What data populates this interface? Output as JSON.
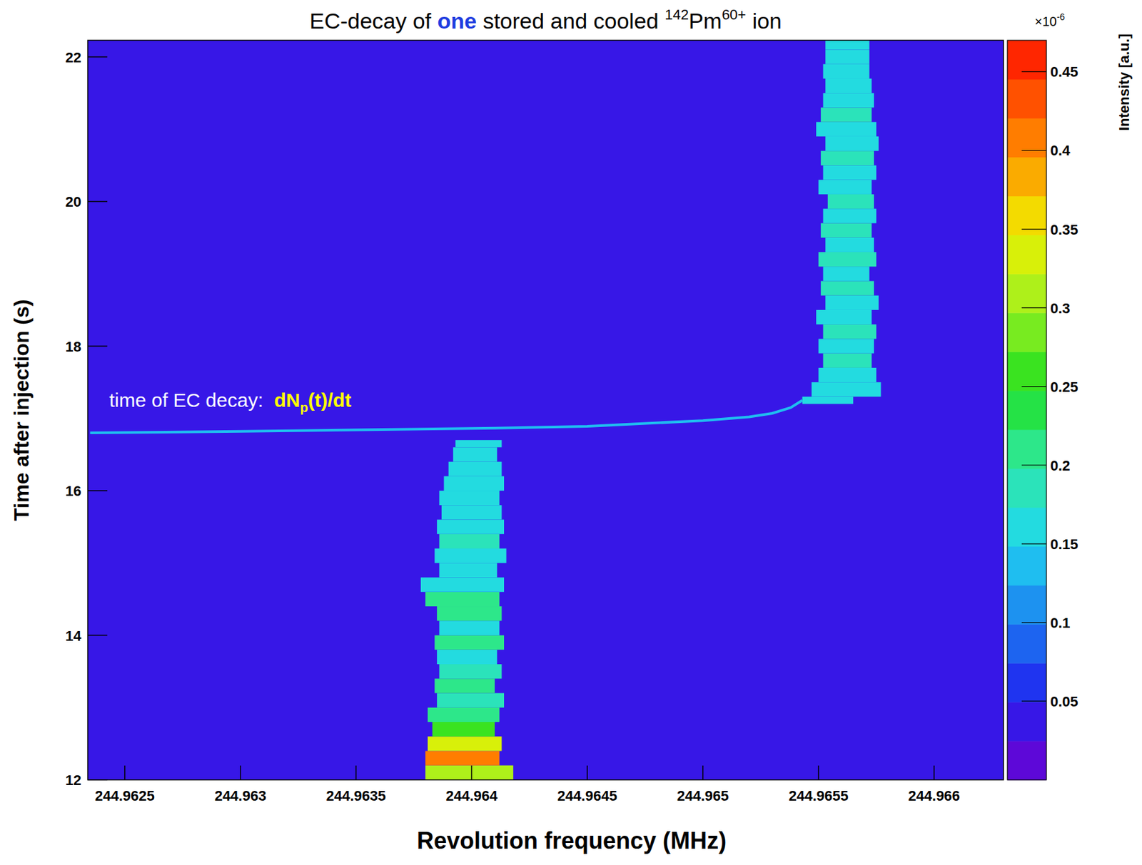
{
  "chart_data": {
    "type": "heatmap",
    "title": [
      "EC-decay of ",
      "one",
      " stored and cooled ",
      "142",
      "Pm",
      "60+",
      " ion"
    ],
    "x_label": "Revolution frequency (MHz)",
    "y_label": "Time after injection (s)",
    "annotation": {
      "label": "time of EC decay:",
      "formula": [
        "dN",
        "p",
        "(t)/dt"
      ]
    },
    "xlim": [
      244.96234,
      244.9663
    ],
    "xticks": [
      244.9625,
      244.963,
      244.9635,
      244.964,
      244.9645,
      244.965,
      244.9655,
      244.966
    ],
    "ylim": [
      12,
      22.23
    ],
    "yticks": [
      12,
      14,
      16,
      18,
      20,
      22
    ],
    "background": 0.03,
    "cells": [
      {
        "t0": 12.0,
        "t1": 12.2,
        "f0": 244.9638,
        "f1": 244.96418,
        "value": 0.3
      },
      {
        "t0": 12.2,
        "t1": 12.4,
        "f0": 244.9638,
        "f1": 244.96412,
        "value": 0.4
      },
      {
        "t0": 12.4,
        "t1": 12.6,
        "f0": 244.96381,
        "f1": 244.96413,
        "value": 0.33
      },
      {
        "t0": 12.6,
        "t1": 12.8,
        "f0": 244.96383,
        "f1": 244.9641,
        "value": 0.27
      },
      {
        "t0": 12.8,
        "t1": 13.0,
        "f0": 244.96381,
        "f1": 244.96412,
        "value": 0.2
      },
      {
        "t0": 13.0,
        "t1": 13.2,
        "f0": 244.96385,
        "f1": 244.96414,
        "value": 0.18
      },
      {
        "t0": 13.2,
        "t1": 13.4,
        "f0": 244.96384,
        "f1": 244.9641,
        "value": 0.2
      },
      {
        "t0": 13.4,
        "t1": 13.6,
        "f0": 244.96386,
        "f1": 244.96413,
        "value": 0.18
      },
      {
        "t0": 13.6,
        "t1": 13.8,
        "f0": 244.96385,
        "f1": 244.96411,
        "value": 0.16
      },
      {
        "t0": 13.8,
        "t1": 14.0,
        "f0": 244.96384,
        "f1": 244.96414,
        "value": 0.2
      },
      {
        "t0": 14.0,
        "t1": 14.2,
        "f0": 244.96386,
        "f1": 244.96412,
        "value": 0.17
      },
      {
        "t0": 14.2,
        "t1": 14.4,
        "f0": 244.96385,
        "f1": 244.96413,
        "value": 0.22
      },
      {
        "t0": 14.4,
        "t1": 14.6,
        "f0": 244.9638,
        "f1": 244.96412,
        "value": 0.2
      },
      {
        "t0": 14.6,
        "t1": 14.8,
        "f0": 244.96378,
        "f1": 244.96414,
        "value": 0.17
      },
      {
        "t0": 14.8,
        "t1": 15.0,
        "f0": 244.96386,
        "f1": 244.96411,
        "value": 0.15
      },
      {
        "t0": 15.0,
        "t1": 15.2,
        "f0": 244.96384,
        "f1": 244.96415,
        "value": 0.16
      },
      {
        "t0": 15.2,
        "t1": 15.4,
        "f0": 244.96386,
        "f1": 244.96412,
        "value": 0.18
      },
      {
        "t0": 15.4,
        "t1": 15.6,
        "f0": 244.96385,
        "f1": 244.96414,
        "value": 0.17
      },
      {
        "t0": 15.6,
        "t1": 15.8,
        "f0": 244.96387,
        "f1": 244.96413,
        "value": 0.16
      },
      {
        "t0": 15.8,
        "t1": 16.0,
        "f0": 244.96386,
        "f1": 244.96412,
        "value": 0.15
      },
      {
        "t0": 16.0,
        "t1": 16.2,
        "f0": 244.96388,
        "f1": 244.96414,
        "value": 0.16
      },
      {
        "t0": 16.2,
        "t1": 16.4,
        "f0": 244.9639,
        "f1": 244.96413,
        "value": 0.15
      },
      {
        "t0": 16.4,
        "t1": 16.6,
        "f0": 244.96392,
        "f1": 244.96411,
        "value": 0.15
      },
      {
        "t0": 16.6,
        "t1": 16.7,
        "f0": 244.96393,
        "f1": 244.96413,
        "value": 0.17
      },
      {
        "t0": 17.2,
        "t1": 17.3,
        "f0": 244.96543,
        "f1": 244.96565,
        "value": 0.15
      },
      {
        "t0": 17.3,
        "t1": 17.5,
        "f0": 244.96547,
        "f1": 244.96577,
        "value": 0.17
      },
      {
        "t0": 17.5,
        "t1": 17.7,
        "f0": 244.9655,
        "f1": 244.96575,
        "value": 0.15
      },
      {
        "t0": 17.7,
        "t1": 17.9,
        "f0": 244.96552,
        "f1": 244.96573,
        "value": 0.18
      },
      {
        "t0": 17.9,
        "t1": 18.1,
        "f0": 244.9655,
        "f1": 244.96574,
        "value": 0.16
      },
      {
        "t0": 18.1,
        "t1": 18.3,
        "f0": 244.96552,
        "f1": 244.96575,
        "value": 0.18
      },
      {
        "t0": 18.3,
        "t1": 18.5,
        "f0": 244.96549,
        "f1": 244.96573,
        "value": 0.15
      },
      {
        "t0": 18.5,
        "t1": 18.7,
        "f0": 244.96553,
        "f1": 244.96576,
        "value": 0.17
      },
      {
        "t0": 18.7,
        "t1": 18.9,
        "f0": 244.96551,
        "f1": 244.96574,
        "value": 0.19
      },
      {
        "t0": 18.9,
        "t1": 19.1,
        "f0": 244.96552,
        "f1": 244.96572,
        "value": 0.16
      },
      {
        "t0": 19.1,
        "t1": 19.3,
        "f0": 244.9655,
        "f1": 244.96575,
        "value": 0.18
      },
      {
        "t0": 19.3,
        "t1": 19.5,
        "f0": 244.96553,
        "f1": 244.96574,
        "value": 0.17
      },
      {
        "t0": 19.5,
        "t1": 19.7,
        "f0": 244.96551,
        "f1": 244.96573,
        "value": 0.19
      },
      {
        "t0": 19.7,
        "t1": 19.9,
        "f0": 244.96552,
        "f1": 244.96575,
        "value": 0.16
      },
      {
        "t0": 19.9,
        "t1": 20.1,
        "f0": 244.96554,
        "f1": 244.96574,
        "value": 0.18
      },
      {
        "t0": 20.1,
        "t1": 20.3,
        "f0": 244.9655,
        "f1": 244.96573,
        "value": 0.17
      },
      {
        "t0": 20.3,
        "t1": 20.5,
        "f0": 244.96552,
        "f1": 244.96575,
        "value": 0.15
      },
      {
        "t0": 20.5,
        "t1": 20.7,
        "f0": 244.96551,
        "f1": 244.96574,
        "value": 0.18
      },
      {
        "t0": 20.7,
        "t1": 20.9,
        "f0": 244.96553,
        "f1": 244.96576,
        "value": 0.17
      },
      {
        "t0": 20.9,
        "t1": 21.1,
        "f0": 244.96549,
        "f1": 244.96575,
        "value": 0.16
      },
      {
        "t0": 21.1,
        "t1": 21.3,
        "f0": 244.96551,
        "f1": 244.96573,
        "value": 0.18
      },
      {
        "t0": 21.3,
        "t1": 21.5,
        "f0": 244.96552,
        "f1": 244.96574,
        "value": 0.17
      },
      {
        "t0": 21.5,
        "t1": 21.7,
        "f0": 244.96553,
        "f1": 244.96573,
        "value": 0.16
      },
      {
        "t0": 21.7,
        "t1": 21.9,
        "f0": 244.96552,
        "f1": 244.96572,
        "value": 0.17
      },
      {
        "t0": 21.9,
        "t1": 22.1,
        "f0": 244.96553,
        "f1": 244.96572,
        "value": 0.16
      },
      {
        "t0": 22.1,
        "t1": 22.23,
        "f0": 244.96553,
        "f1": 244.96572,
        "value": 0.17
      }
    ],
    "line": {
      "x": [
        244.96235,
        244.963,
        244.9635,
        244.964,
        244.9645,
        244.965,
        244.9652,
        244.9653,
        244.96538,
        244.96543
      ],
      "y": [
        16.8,
        16.82,
        16.84,
        16.86,
        16.89,
        16.97,
        17.02,
        17.07,
        17.15,
        17.25
      ],
      "value": 0.13
    },
    "colorbar": {
      "range": [
        0,
        0.47
      ],
      "ticks": [
        0.05,
        0.1,
        0.15,
        0.2,
        0.25,
        0.3,
        0.35,
        0.4,
        0.45
      ],
      "label": "Intensity [a.u.]",
      "scale_label": [
        "×10",
        "-6"
      ]
    }
  }
}
